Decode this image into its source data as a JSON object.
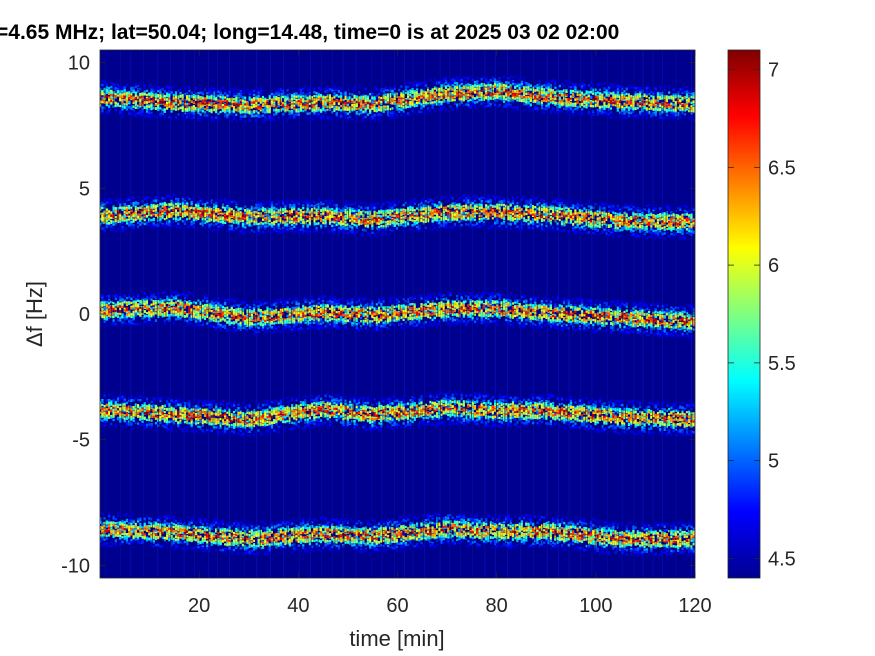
{
  "chart_data": {
    "type": "heatmap",
    "title": "=4.65 MHz;  lat=50.04; long=14.48, time=0 is at 2025 03 02 02:00",
    "xlabel": "time [min]",
    "ylabel": "Δf [Hz]",
    "xlim": [
      0,
      120
    ],
    "ylim": [
      -10.5,
      10.5
    ],
    "xticks": [
      20,
      40,
      60,
      80,
      100,
      120
    ],
    "yticks": [
      10,
      5,
      0,
      -5,
      -10
    ],
    "colorbar": {
      "colormap": "jet",
      "clim": [
        4.4,
        7.1
      ],
      "ticks": [
        7,
        6.5,
        6,
        5.5,
        5,
        4.5
      ]
    },
    "background_value": 4.4,
    "bands": [
      {
        "center_hz": 8.6,
        "drift": [
          [
            0,
            8.6
          ],
          [
            15,
            8.4
          ],
          [
            30,
            8.3
          ],
          [
            45,
            8.4
          ],
          [
            55,
            8.35
          ],
          [
            70,
            8.75
          ],
          [
            80,
            8.85
          ],
          [
            90,
            8.65
          ],
          [
            105,
            8.45
          ],
          [
            120,
            8.35
          ]
        ]
      },
      {
        "center_hz": 3.9,
        "drift": [
          [
            0,
            3.9
          ],
          [
            15,
            4.1
          ],
          [
            30,
            3.85
          ],
          [
            45,
            3.9
          ],
          [
            55,
            3.75
          ],
          [
            70,
            4.05
          ],
          [
            80,
            4.05
          ],
          [
            90,
            3.95
          ],
          [
            105,
            3.7
          ],
          [
            120,
            3.65
          ]
        ]
      },
      {
        "center_hz": 0.1,
        "drift": [
          [
            0,
            0.15
          ],
          [
            15,
            0.25
          ],
          [
            30,
            -0.15
          ],
          [
            45,
            0.05
          ],
          [
            55,
            -0.05
          ],
          [
            70,
            0.2
          ],
          [
            80,
            0.2
          ],
          [
            90,
            0.05
          ],
          [
            105,
            -0.15
          ],
          [
            120,
            -0.3
          ]
        ]
      },
      {
        "center_hz": -4.0,
        "drift": [
          [
            0,
            -3.8
          ],
          [
            15,
            -4.0
          ],
          [
            30,
            -4.2
          ],
          [
            45,
            -3.8
          ],
          [
            55,
            -4.0
          ],
          [
            70,
            -3.75
          ],
          [
            80,
            -3.85
          ],
          [
            90,
            -3.85
          ],
          [
            105,
            -4.1
          ],
          [
            120,
            -4.2
          ]
        ]
      },
      {
        "center_hz": -8.8,
        "drift": [
          [
            0,
            -8.55
          ],
          [
            15,
            -8.7
          ],
          [
            30,
            -8.95
          ],
          [
            45,
            -8.75
          ],
          [
            55,
            -8.85
          ],
          [
            70,
            -8.55
          ],
          [
            80,
            -8.65
          ],
          [
            90,
            -8.65
          ],
          [
            105,
            -8.95
          ],
          [
            120,
            -8.95
          ]
        ]
      }
    ],
    "band_halfwidth_hz": 0.35,
    "band_peak_value": 7.0,
    "vertical_streaks": true
  }
}
